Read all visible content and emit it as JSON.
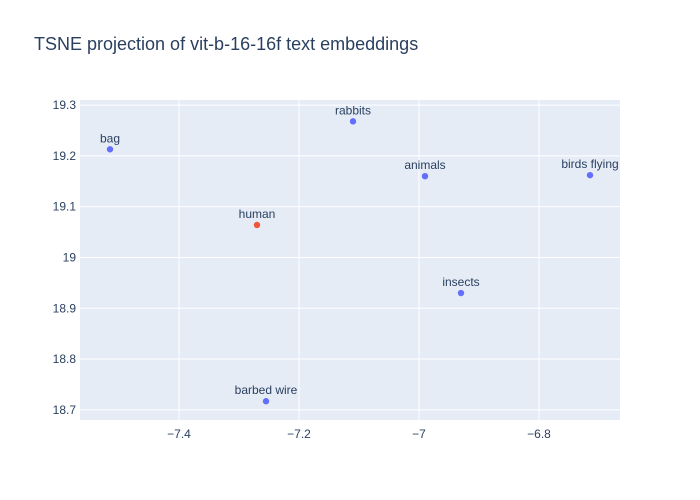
{
  "chart_data": {
    "type": "scatter",
    "title": "TSNE projection of vit-b-16-16f text embeddings",
    "xlabel": "",
    "ylabel": "",
    "xlim": [
      -7.565,
      -6.665
    ],
    "ylim": [
      18.68,
      19.31
    ],
    "x_ticks": [
      -7.4,
      -7.2,
      -7.0,
      -6.8
    ],
    "x_tick_labels": [
      "−7.4",
      "−7.2",
      "−7",
      "−6.8"
    ],
    "y_ticks": [
      18.7,
      18.8,
      18.9,
      19.0,
      19.1,
      19.2,
      19.3
    ],
    "y_tick_labels": [
      "18.7",
      "18.8",
      "18.9",
      "19",
      "19.1",
      "19.2",
      "19.3"
    ],
    "grid": true,
    "colors": {
      "plot_bg": "#e5ecf6",
      "grid": "#ffffff",
      "default_marker": "#636efa",
      "highlight_marker": "#ef553b",
      "text": "#2a3f5f"
    },
    "points": [
      {
        "label": "bag",
        "x": -7.515,
        "y": 19.213,
        "color": "#636efa"
      },
      {
        "label": "rabbits",
        "x": -7.11,
        "y": 19.268,
        "color": "#636efa"
      },
      {
        "label": "animals",
        "x": -6.99,
        "y": 19.16,
        "color": "#636efa"
      },
      {
        "label": "birds flying",
        "x": -6.715,
        "y": 19.162,
        "color": "#636efa"
      },
      {
        "label": "human",
        "x": -7.27,
        "y": 19.064,
        "color": "#ef553b"
      },
      {
        "label": "insects",
        "x": -6.93,
        "y": 18.93,
        "color": "#636efa"
      },
      {
        "label": "barbed wire",
        "x": -7.255,
        "y": 18.717,
        "color": "#636efa"
      }
    ]
  }
}
